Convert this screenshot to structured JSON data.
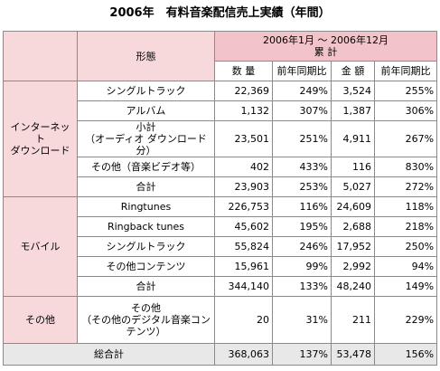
{
  "title": "2006年　有料音楽配信売上実績（年間）",
  "header": {
    "form": "形態",
    "period": "2006年1月 ～ 2006年12月",
    "cumulative": "累 計",
    "columns": [
      "数 量",
      "前年同期比",
      "金 額",
      "前年同期比"
    ]
  },
  "groups": [
    {
      "name": [
        "インターネット",
        "ダウンロード"
      ],
      "rows": [
        {
          "label": [
            "シングルトラック"
          ],
          "values": [
            "22,369",
            "249%",
            "3,524",
            "255%"
          ]
        },
        {
          "label": [
            "アルバム"
          ],
          "values": [
            "1,132",
            "307%",
            "1,387",
            "306%"
          ]
        },
        {
          "label": [
            "小計",
            "（オーディオ ダウンロード分）"
          ],
          "values": [
            "23,501",
            "251%",
            "4,911",
            "267%"
          ]
        },
        {
          "label": [
            "その他（音楽ビデオ等）"
          ],
          "values": [
            "402",
            "433%",
            "116",
            "830%"
          ]
        },
        {
          "label": [
            "合計"
          ],
          "values": [
            "23,903",
            "253%",
            "5,027",
            "272%"
          ]
        }
      ]
    },
    {
      "name": [
        "モバイル"
      ],
      "rows": [
        {
          "label": [
            "Ringtunes"
          ],
          "values": [
            "226,753",
            "116%",
            "24,609",
            "118%"
          ]
        },
        {
          "label": [
            "Ringback tunes"
          ],
          "values": [
            "45,602",
            "195%",
            "2,688",
            "218%"
          ]
        },
        {
          "label": [
            "シングルトラック"
          ],
          "values": [
            "55,824",
            "246%",
            "17,952",
            "250%"
          ]
        },
        {
          "label": [
            "その他コンテンツ"
          ],
          "values": [
            "15,961",
            "99%",
            "2,992",
            "94%"
          ]
        },
        {
          "label": [
            "合計"
          ],
          "values": [
            "344,140",
            "133%",
            "48,240",
            "149%"
          ]
        }
      ]
    },
    {
      "name": [
        "その他"
      ],
      "rows": [
        {
          "label": [
            "その他",
            "（その他のデジタル音楽コン",
            "テンツ）"
          ],
          "values": [
            "20",
            "31%",
            "211",
            "229%"
          ]
        }
      ]
    }
  ],
  "total": {
    "label": "総合計",
    "values": [
      "368,063",
      "137%",
      "53,478",
      "156%"
    ]
  }
}
